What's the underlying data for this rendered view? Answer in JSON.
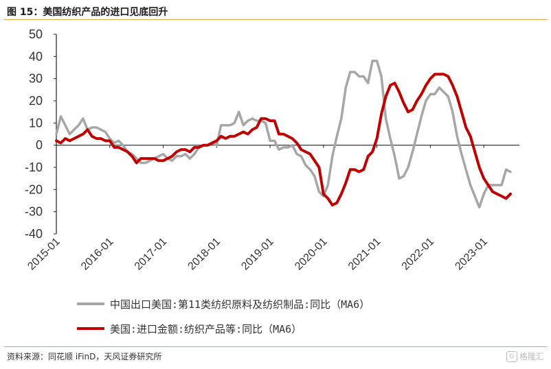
{
  "header": {
    "title": "图 15：美国纺织产品的进口见底回升"
  },
  "footer": {
    "source": "资料来源：同花顺 iFinD，天风证券研究所",
    "watermark": "格隆汇"
  },
  "colors": {
    "series1": "#a6a6a6",
    "series2": "#c00000",
    "rule": "#e6a23c"
  },
  "chart_data": {
    "type": "line",
    "title": "",
    "xlabel": "",
    "ylabel": "",
    "ylim": [
      -40,
      50
    ],
    "yticks": [
      50,
      40,
      30,
      20,
      10,
      0,
      -10,
      -20,
      -30,
      -40
    ],
    "xticks": [
      "2015-01",
      "2016-01",
      "2017-01",
      "2018-01",
      "2019-01",
      "2020-01",
      "2021-01",
      "2022-01",
      "2023-01"
    ],
    "x_range": [
      "2015-01",
      "2023-09"
    ],
    "grid": false,
    "legend": "bottom",
    "series": [
      {
        "name": "中国出口美国:第11类纺织原料及纺织制品:同比（MA6）",
        "color": "#a6a6a6",
        "points": [
          [
            "2015-01",
            5
          ],
          [
            "2015-02",
            13
          ],
          [
            "2015-03",
            9
          ],
          [
            "2015-04",
            5
          ],
          [
            "2015-05",
            7
          ],
          [
            "2015-06",
            9
          ],
          [
            "2015-07",
            12
          ],
          [
            "2015-08",
            7
          ],
          [
            "2015-09",
            8
          ],
          [
            "2015-10",
            8
          ],
          [
            "2015-11",
            7
          ],
          [
            "2015-12",
            6
          ],
          [
            "2016-01",
            3
          ],
          [
            "2016-02",
            1
          ],
          [
            "2016-03",
            2
          ],
          [
            "2016-04",
            0
          ],
          [
            "2016-05",
            -3
          ],
          [
            "2016-06",
            -4
          ],
          [
            "2016-07",
            -6
          ],
          [
            "2016-08",
            -8
          ],
          [
            "2016-09",
            -8
          ],
          [
            "2016-10",
            -7
          ],
          [
            "2016-11",
            -6
          ],
          [
            "2016-12",
            -5
          ],
          [
            "2017-01",
            -4
          ],
          [
            "2017-02",
            -6
          ],
          [
            "2017-03",
            -7
          ],
          [
            "2017-04",
            -5
          ],
          [
            "2017-05",
            -5
          ],
          [
            "2017-06",
            -4
          ],
          [
            "2017-07",
            -6
          ],
          [
            "2017-08",
            -4
          ],
          [
            "2017-09",
            -1
          ],
          [
            "2017-10",
            0
          ],
          [
            "2017-11",
            0
          ],
          [
            "2017-12",
            1
          ],
          [
            "2018-01",
            0
          ],
          [
            "2018-02",
            9
          ],
          [
            "2018-03",
            9
          ],
          [
            "2018-04",
            9
          ],
          [
            "2018-05",
            10
          ],
          [
            "2018-06",
            15
          ],
          [
            "2018-07",
            9
          ],
          [
            "2018-08",
            11
          ],
          [
            "2018-09",
            12
          ],
          [
            "2018-10",
            11
          ],
          [
            "2018-11",
            11
          ],
          [
            "2018-12",
            10
          ],
          [
            "2019-01",
            2
          ],
          [
            "2019-02",
            2
          ],
          [
            "2019-03",
            -2
          ],
          [
            "2019-04",
            -1
          ],
          [
            "2019-05",
            -1
          ],
          [
            "2019-06",
            0
          ],
          [
            "2019-07",
            -4
          ],
          [
            "2019-08",
            -5
          ],
          [
            "2019-09",
            -9
          ],
          [
            "2019-10",
            -11
          ],
          [
            "2019-11",
            -14
          ],
          [
            "2019-12",
            -21
          ],
          [
            "2020-01",
            -23
          ],
          [
            "2020-02",
            -18
          ],
          [
            "2020-03",
            -5
          ],
          [
            "2020-04",
            4
          ],
          [
            "2020-05",
            12
          ],
          [
            "2020-06",
            26
          ],
          [
            "2020-07",
            33
          ],
          [
            "2020-08",
            33
          ],
          [
            "2020-09",
            31
          ],
          [
            "2020-10",
            31
          ],
          [
            "2020-11",
            28
          ],
          [
            "2020-12",
            38
          ],
          [
            "2021-01",
            38
          ],
          [
            "2021-02",
            31
          ],
          [
            "2021-03",
            12
          ],
          [
            "2021-04",
            3
          ],
          [
            "2021-05",
            -5
          ],
          [
            "2021-06",
            -15
          ],
          [
            "2021-07",
            -14
          ],
          [
            "2021-08",
            -10
          ],
          [
            "2021-09",
            -3
          ],
          [
            "2021-10",
            5
          ],
          [
            "2021-11",
            13
          ],
          [
            "2021-12",
            20
          ],
          [
            "2022-01",
            23
          ],
          [
            "2022-02",
            23
          ],
          [
            "2022-03",
            26
          ],
          [
            "2022-04",
            24
          ],
          [
            "2022-05",
            22
          ],
          [
            "2022-06",
            15
          ],
          [
            "2022-07",
            4
          ],
          [
            "2022-08",
            -4
          ],
          [
            "2022-09",
            -11
          ],
          [
            "2022-10",
            -18
          ],
          [
            "2022-11",
            -23
          ],
          [
            "2022-12",
            -28
          ],
          [
            "2023-01",
            -22
          ],
          [
            "2023-02",
            -18
          ],
          [
            "2023-03",
            -18
          ],
          [
            "2023-04",
            -18
          ],
          [
            "2023-05",
            -18
          ],
          [
            "2023-06",
            -11
          ],
          [
            "2023-07",
            -12
          ]
        ]
      },
      {
        "name": "美国:进口金额:纺织产品等:同比（MA6）",
        "color": "#c00000",
        "points": [
          [
            "2015-01",
            2
          ],
          [
            "2015-02",
            1
          ],
          [
            "2015-03",
            3
          ],
          [
            "2015-04",
            2
          ],
          [
            "2015-05",
            3
          ],
          [
            "2015-06",
            4
          ],
          [
            "2015-07",
            5
          ],
          [
            "2015-08",
            7
          ],
          [
            "2015-09",
            4
          ],
          [
            "2015-10",
            3
          ],
          [
            "2015-11",
            3
          ],
          [
            "2015-12",
            2
          ],
          [
            "2016-01",
            2
          ],
          [
            "2016-02",
            -1
          ],
          [
            "2016-03",
            -1
          ],
          [
            "2016-04",
            -2
          ],
          [
            "2016-05",
            -3
          ],
          [
            "2016-06",
            -5
          ],
          [
            "2016-07",
            -8
          ],
          [
            "2016-08",
            -6
          ],
          [
            "2016-09",
            -6
          ],
          [
            "2016-10",
            -6
          ],
          [
            "2016-11",
            -6
          ],
          [
            "2016-12",
            -7
          ],
          [
            "2017-01",
            -7
          ],
          [
            "2017-02",
            -6
          ],
          [
            "2017-03",
            -5
          ],
          [
            "2017-04",
            -3
          ],
          [
            "2017-05",
            -2
          ],
          [
            "2017-06",
            -2
          ],
          [
            "2017-07",
            -3
          ],
          [
            "2017-08",
            -1
          ],
          [
            "2017-09",
            -1
          ],
          [
            "2017-10",
            0
          ],
          [
            "2017-11",
            0
          ],
          [
            "2017-12",
            1
          ],
          [
            "2018-01",
            2
          ],
          [
            "2018-02",
            4
          ],
          [
            "2018-03",
            3
          ],
          [
            "2018-04",
            4
          ],
          [
            "2018-05",
            4
          ],
          [
            "2018-06",
            5
          ],
          [
            "2018-07",
            6
          ],
          [
            "2018-08",
            5
          ],
          [
            "2018-09",
            7
          ],
          [
            "2018-10",
            8
          ],
          [
            "2018-11",
            12
          ],
          [
            "2018-12",
            12
          ],
          [
            "2019-01",
            11
          ],
          [
            "2019-02",
            11
          ],
          [
            "2019-03",
            5
          ],
          [
            "2019-04",
            5
          ],
          [
            "2019-05",
            4
          ],
          [
            "2019-06",
            3
          ],
          [
            "2019-07",
            1
          ],
          [
            "2019-08",
            -2
          ],
          [
            "2019-09",
            -3
          ],
          [
            "2019-10",
            -4
          ],
          [
            "2019-11",
            -7
          ],
          [
            "2019-12",
            -10
          ],
          [
            "2020-01",
            -22
          ],
          [
            "2020-02",
            -24
          ],
          [
            "2020-03",
            -27
          ],
          [
            "2020-04",
            -26
          ],
          [
            "2020-05",
            -22
          ],
          [
            "2020-06",
            -17
          ],
          [
            "2020-07",
            -11
          ],
          [
            "2020-08",
            -11
          ],
          [
            "2020-09",
            -12
          ],
          [
            "2020-10",
            -11
          ],
          [
            "2020-11",
            -5
          ],
          [
            "2020-12",
            -3
          ],
          [
            "2021-01",
            3
          ],
          [
            "2021-02",
            14
          ],
          [
            "2021-03",
            22
          ],
          [
            "2021-04",
            27
          ],
          [
            "2021-05",
            28
          ],
          [
            "2021-06",
            24
          ],
          [
            "2021-07",
            19
          ],
          [
            "2021-08",
            15
          ],
          [
            "2021-09",
            16
          ],
          [
            "2021-10",
            20
          ],
          [
            "2021-11",
            23
          ],
          [
            "2021-12",
            27
          ],
          [
            "2022-01",
            30
          ],
          [
            "2022-02",
            32
          ],
          [
            "2022-03",
            32
          ],
          [
            "2022-04",
            32
          ],
          [
            "2022-05",
            31
          ],
          [
            "2022-06",
            27
          ],
          [
            "2022-07",
            22
          ],
          [
            "2022-08",
            15
          ],
          [
            "2022-09",
            8
          ],
          [
            "2022-10",
            4
          ],
          [
            "2022-11",
            -3
          ],
          [
            "2022-12",
            -10
          ],
          [
            "2023-01",
            -15
          ],
          [
            "2023-02",
            -18
          ],
          [
            "2023-03",
            -21
          ],
          [
            "2023-04",
            -22
          ],
          [
            "2023-05",
            -23
          ],
          [
            "2023-06",
            -24
          ],
          [
            "2023-07",
            -22
          ]
        ]
      }
    ]
  }
}
